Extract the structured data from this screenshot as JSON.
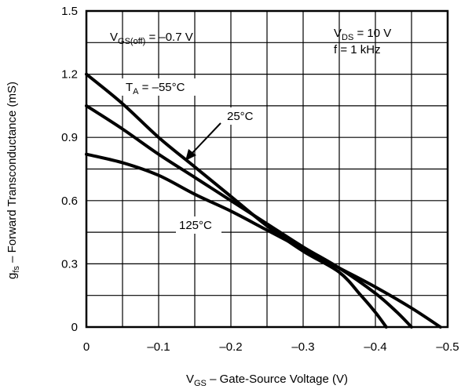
{
  "chart_data": {
    "type": "line",
    "xlabel": {
      "main": "V",
      "sub": "GS",
      "rest": " – Gate-Source Voltage (V)"
    },
    "ylabel": {
      "main": "g",
      "sub": "fs",
      "rest": " – Forward Transconductance (mS)"
    },
    "xlim": [
      0,
      -0.5
    ],
    "ylim": [
      0,
      1.5
    ],
    "x_ticks": [
      {
        "value": 0,
        "label": "0"
      },
      {
        "value": -0.1,
        "label": "–0.1"
      },
      {
        "value": -0.2,
        "label": "–0.2"
      },
      {
        "value": -0.3,
        "label": "–0.3"
      },
      {
        "value": -0.4,
        "label": "–0.4"
      },
      {
        "value": -0.5,
        "label": "–0.5"
      }
    ],
    "y_ticks": [
      {
        "value": 0,
        "label": "0"
      },
      {
        "value": 0.3,
        "label": "0.3"
      },
      {
        "value": 0.6,
        "label": "0.6"
      },
      {
        "value": 0.9,
        "label": "0.9"
      },
      {
        "value": 1.2,
        "label": "1.2"
      },
      {
        "value": 1.5,
        "label": "1.5"
      }
    ],
    "grid": {
      "x_step": 0.05,
      "y_step": 0.15
    },
    "annotations": {
      "vgs_off": {
        "main": "V",
        "sub": "GS(off)",
        "rest": " = –0.7 V"
      },
      "vds": {
        "main": "V",
        "sub": "DS",
        "rest": " = 10 V"
      },
      "freq": "f = 1 kHz"
    },
    "series": [
      {
        "name": "T_A = –55°C",
        "label": {
          "main": "T",
          "sub": "A",
          "rest": " = –55°C"
        },
        "x": [
          0,
          -0.05,
          -0.1,
          -0.15,
          -0.2,
          -0.25,
          -0.3,
          -0.35,
          -0.38,
          -0.4,
          -0.415
        ],
        "y": [
          1.2,
          1.06,
          0.9,
          0.76,
          0.62,
          0.48,
          0.36,
          0.26,
          0.15,
          0.07,
          0
        ]
      },
      {
        "name": "25°C",
        "label": {
          "main": "25°C",
          "sub": "",
          "rest": ""
        },
        "x": [
          0,
          -0.05,
          -0.1,
          -0.15,
          -0.2,
          -0.25,
          -0.3,
          -0.35,
          -0.4,
          -0.43,
          -0.45
        ],
        "y": [
          1.05,
          0.94,
          0.82,
          0.71,
          0.6,
          0.49,
          0.38,
          0.28,
          0.16,
          0.07,
          0
        ]
      },
      {
        "name": "125°C",
        "label": {
          "main": "125°C",
          "sub": "",
          "rest": ""
        },
        "x": [
          0,
          -0.05,
          -0.1,
          -0.15,
          -0.2,
          -0.25,
          -0.3,
          -0.35,
          -0.4,
          -0.45,
          -0.49
        ],
        "y": [
          0.82,
          0.78,
          0.72,
          0.63,
          0.55,
          0.46,
          0.37,
          0.28,
          0.19,
          0.09,
          0
        ]
      }
    ]
  }
}
